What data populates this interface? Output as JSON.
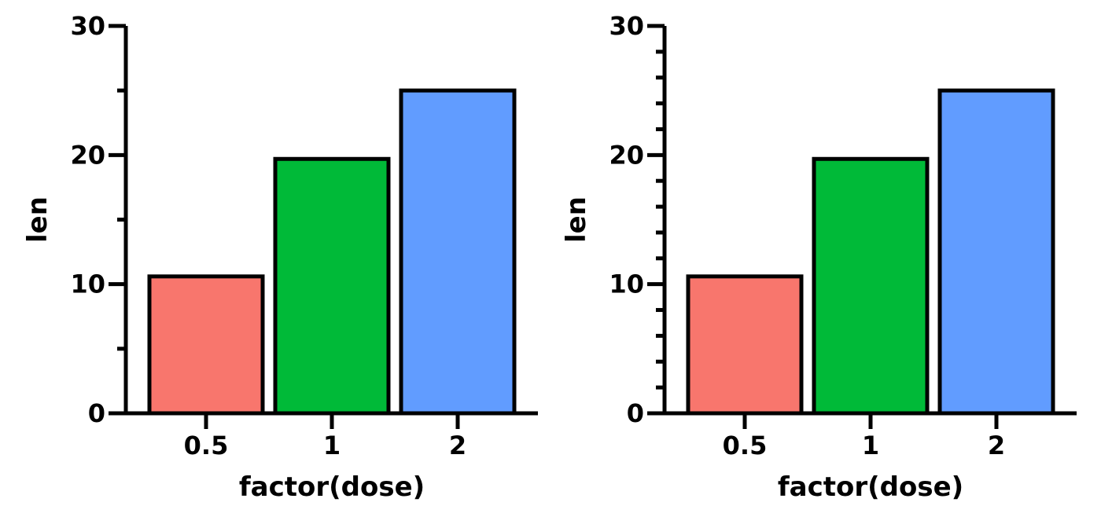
{
  "chart_data": [
    {
      "type": "bar",
      "categories": [
        "0.5",
        "1",
        "2"
      ],
      "values": [
        10.6,
        19.7,
        25.0
      ],
      "colors": [
        "#F8766D",
        "#00BA38",
        "#619CFF"
      ],
      "xlabel": "factor(dose)",
      "ylabel": "len",
      "ylim": [
        0,
        30
      ],
      "yticks": [
        "0",
        "10",
        "20",
        "30"
      ],
      "minor_ticks": "one between major ticks",
      "grid": false,
      "legend": "none"
    },
    {
      "type": "bar",
      "categories": [
        "0.5",
        "1",
        "2"
      ],
      "values": [
        10.6,
        19.7,
        25.0
      ],
      "colors": [
        "#F8766D",
        "#00BA38",
        "#619CFF"
      ],
      "xlabel": "factor(dose)",
      "ylabel": "len",
      "ylim": [
        0,
        30
      ],
      "yticks": [
        "0",
        "10",
        "20",
        "30"
      ],
      "minor_ticks": "four between major ticks",
      "grid": false,
      "legend": "none"
    }
  ]
}
